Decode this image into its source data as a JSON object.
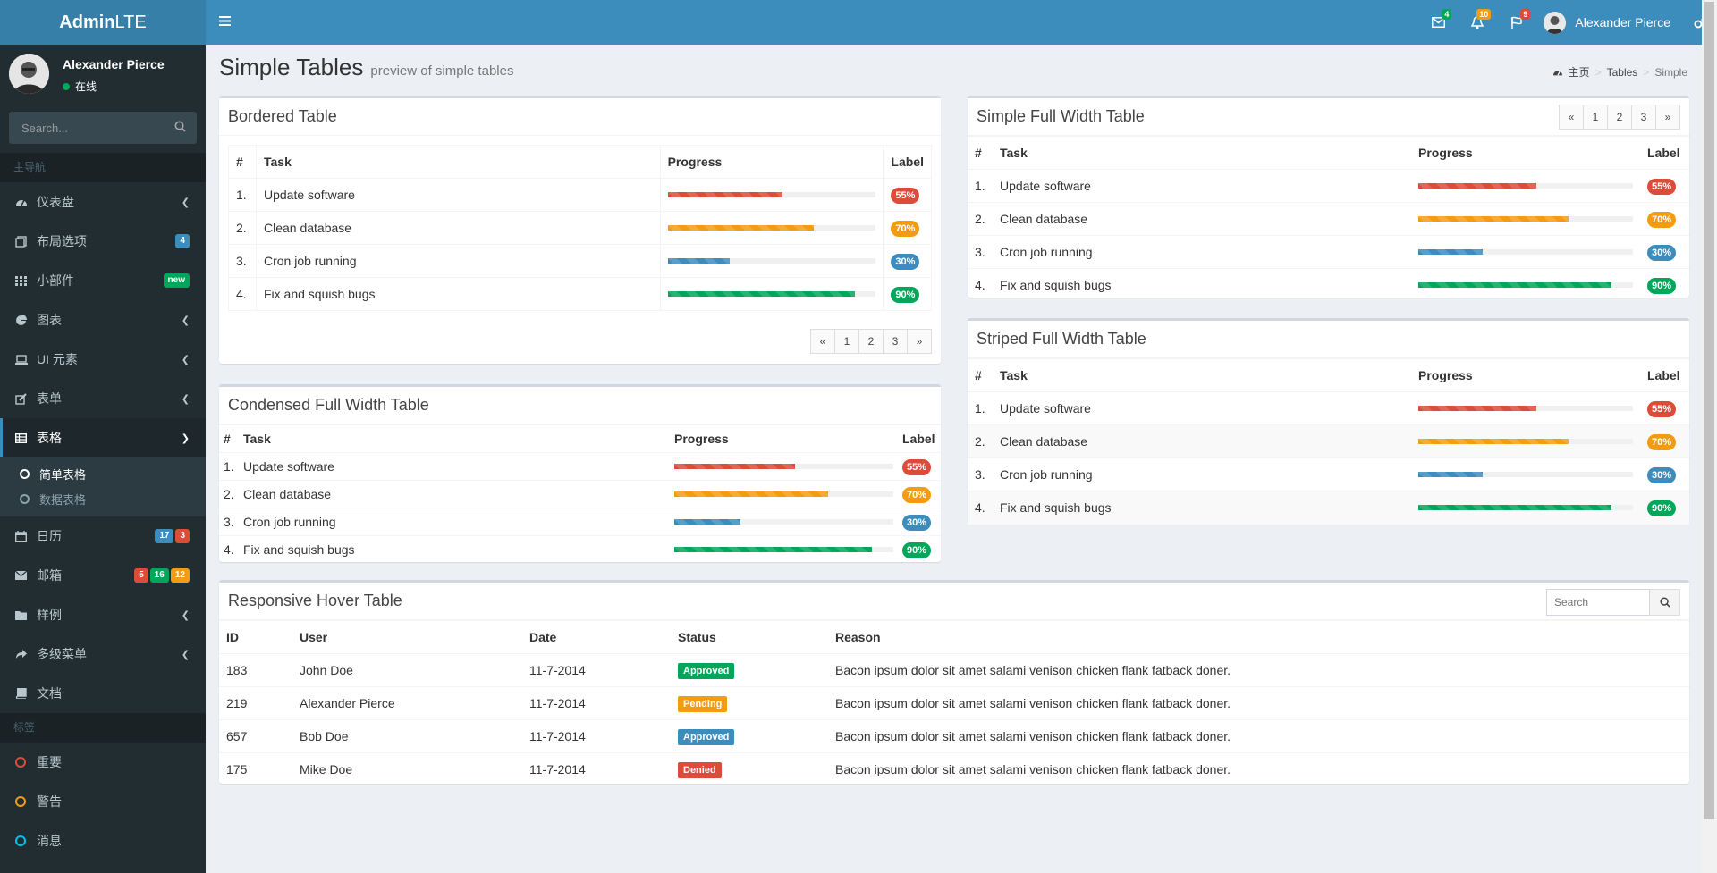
{
  "app": {
    "logo_bold": "Admin",
    "logo_rest": "LTE"
  },
  "topnav": {
    "messages_count": "4",
    "notifications_count": "10",
    "tasks_count": "9",
    "user_name": "Alexander Pierce"
  },
  "sidebar": {
    "user_name": "Alexander Pierce",
    "status": "在线",
    "search_placeholder": "Search...",
    "header_main": "主导航",
    "header_labels": "标签",
    "items": [
      {
        "label": "仪表盘",
        "icon": "dashboard-icon"
      },
      {
        "label": "布局选项",
        "icon": "files-icon",
        "badge": "4"
      },
      {
        "label": "小部件",
        "icon": "th-icon",
        "badge": "new"
      },
      {
        "label": "图表",
        "icon": "pie-chart-icon"
      },
      {
        "label": "UI 元素",
        "icon": "laptop-icon"
      },
      {
        "label": "表单",
        "icon": "edit-icon"
      },
      {
        "label": "表格",
        "icon": "table-icon"
      },
      {
        "label": "日历",
        "icon": "calendar-icon",
        "badges": [
          "17",
          "3"
        ]
      },
      {
        "label": "邮箱",
        "icon": "envelope-icon",
        "badges": [
          "5",
          "16",
          "12"
        ]
      },
      {
        "label": "样例",
        "icon": "folder-icon"
      },
      {
        "label": "多级菜单",
        "icon": "share-icon"
      },
      {
        "label": "文档",
        "icon": "book-icon"
      }
    ],
    "submenu": [
      "简单表格",
      "数据表格"
    ],
    "labels": [
      "重要",
      "警告",
      "消息"
    ]
  },
  "page": {
    "title": "Simple Tables",
    "subtitle": "preview of simple tables",
    "breadcrumb": [
      "主页",
      "Tables",
      "Simple"
    ]
  },
  "colors": {
    "red": "#dd4b39",
    "yellow": "#f39c12",
    "blue": "#3c8dbc",
    "green": "#00a65a",
    "sidebar": "#222d32",
    "header": "#3c8dbc"
  },
  "task_headers": {
    "num": "#",
    "task": "Task",
    "progress": "Progress",
    "label": "Label"
  },
  "tasks": [
    {
      "num": "1.",
      "task": "Update software",
      "progress": 55,
      "label": "55%",
      "color": "#dd4b39"
    },
    {
      "num": "2.",
      "task": "Clean database",
      "progress": 70,
      "label": "70%",
      "color": "#f39c12"
    },
    {
      "num": "3.",
      "task": "Cron job running",
      "progress": 30,
      "label": "30%",
      "color": "#3c8dbc"
    },
    {
      "num": "4.",
      "task": "Fix and squish bugs",
      "progress": 90,
      "label": "90%",
      "color": "#00a65a"
    }
  ],
  "boxes": {
    "bordered": "Bordered Table",
    "simple_full": "Simple Full Width Table",
    "condensed": "Condensed Full Width Table",
    "striped": "Striped Full Width Table",
    "hover": "Responsive Hover Table"
  },
  "pagination": [
    "«",
    "1",
    "2",
    "3",
    "»"
  ],
  "hover_table": {
    "search_placeholder": "Search",
    "headers": [
      "ID",
      "User",
      "Date",
      "Status",
      "Reason"
    ],
    "rows": [
      {
        "id": "183",
        "user": "John Doe",
        "date": "11-7-2014",
        "status": "Approved",
        "status_color": "#00a65a",
        "reason": "Bacon ipsum dolor sit amet salami venison chicken flank fatback doner."
      },
      {
        "id": "219",
        "user": "Alexander Pierce",
        "date": "11-7-2014",
        "status": "Pending",
        "status_color": "#f39c12",
        "reason": "Bacon ipsum dolor sit amet salami venison chicken flank fatback doner."
      },
      {
        "id": "657",
        "user": "Bob Doe",
        "date": "11-7-2014",
        "status": "Approved",
        "status_color": "#3c8dbc",
        "reason": "Bacon ipsum dolor sit amet salami venison chicken flank fatback doner."
      },
      {
        "id": "175",
        "user": "Mike Doe",
        "date": "11-7-2014",
        "status": "Denied",
        "status_color": "#dd4b39",
        "reason": "Bacon ipsum dolor sit amet salami venison chicken flank fatback doner."
      }
    ]
  }
}
